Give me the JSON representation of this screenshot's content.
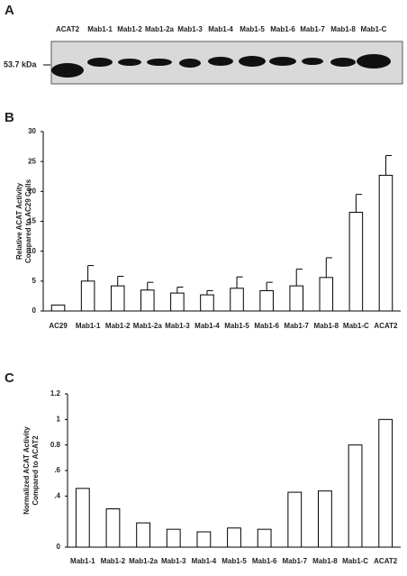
{
  "blot": {
    "panel": "A",
    "marker": "53.7 kDa",
    "lanes": [
      "ACAT2",
      "Mab1-1",
      "Mab1-2",
      "Mab1-2a",
      "Mab1-3",
      "Mab1-4",
      "Mab1-5",
      "Mab1-6",
      "Mab1-7",
      "Mab1-8",
      "Mab1-C"
    ]
  },
  "chart_data": [
    {
      "type": "bar",
      "panel": "B",
      "ylabel": [
        "Relative ACAT Activity",
        "Compared to AC29 Cells"
      ],
      "categories": [
        "AC29",
        "Mab1-1",
        "Mab1-2",
        "Mab1-2a",
        "Mab1-3",
        "Mab1-4",
        "Mab1-5",
        "Mab1-6",
        "Mab1-7",
        "Mab1-8",
        "Mab1-C",
        "ACAT2"
      ],
      "values": [
        1,
        5,
        4.2,
        3.5,
        3,
        2.7,
        3.8,
        3.4,
        4.2,
        5.6,
        16.5,
        22.7
      ],
      "errors": [
        null,
        2.6,
        1.6,
        1.3,
        1,
        0.7,
        1.9,
        1.4,
        2.8,
        3.3,
        3,
        3.3
      ],
      "color": "#ffffff",
      "ylim": [
        0,
        30
      ],
      "yticks": [
        0,
        5,
        10,
        15,
        20,
        25,
        30
      ]
    },
    {
      "type": "bar",
      "panel": "C",
      "ylabel": [
        "Normalized ACAT Activity",
        "Compared to ACAT2"
      ],
      "categories": [
        "Mab1-1",
        "Mab1-2",
        "Mab1-2a",
        "Mab1-3",
        "Mab1-4",
        "Mab1-5",
        "Mab1-6",
        "Mab1-7",
        "Mab1-8",
        "Mab1-C",
        "ACAT2"
      ],
      "values": [
        0.46,
        0.3,
        0.19,
        0.14,
        0.12,
        0.15,
        0.14,
        0.43,
        0.44,
        0.8,
        1.0
      ],
      "color": "#ffffff",
      "ylim": [
        0,
        1.2
      ],
      "yticks": [
        0,
        {
          "value": 0.4,
          "label": ".4"
        },
        {
          "value": 0.6,
          "label": ".6"
        },
        0.8,
        1,
        1.2
      ]
    }
  ]
}
